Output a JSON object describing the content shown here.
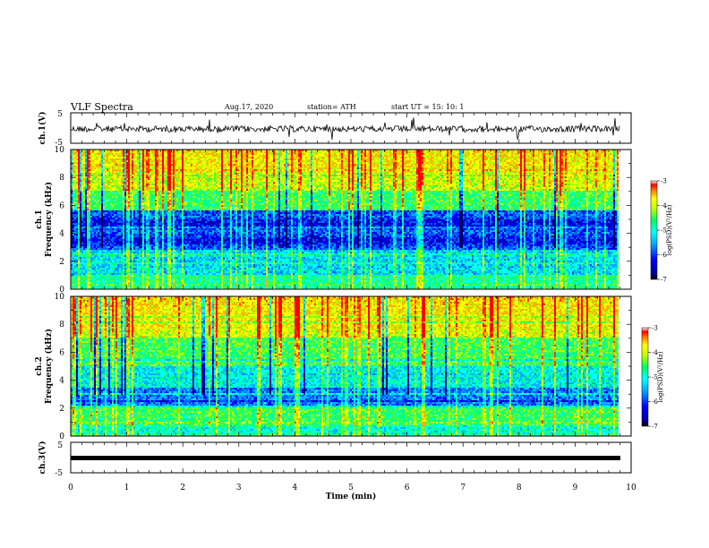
{
  "header": {
    "title": "VLF Spectra",
    "date": "Aug.17, 2020",
    "station": "station= ATH",
    "start": "start  UT  =   15: 10: 1"
  },
  "chart_data": [
    {
      "type": "line",
      "name": "ch1-waveform",
      "ylabel": "ch.1(V)",
      "ylim": [
        -5,
        5
      ],
      "yticks": [
        "5",
        "-5"
      ],
      "xlim": [
        0,
        10
      ],
      "values_description_free": true
    },
    {
      "type": "heatmap",
      "name": "ch1-spectrogram",
      "ylabel": "ch.1\nFrequency (kHz)",
      "ylabel_line1": "ch.1",
      "ylabel_line2": "Frequency (kHz)",
      "ylim": [
        0,
        10
      ],
      "yticks": [
        "0",
        "2",
        "4",
        "6",
        "8",
        "10"
      ],
      "xlim": [
        0,
        9.8
      ],
      "colorbar": {
        "label": "log(PSD)(V²/Hz)",
        "range": [
          -7,
          -3
        ],
        "ticks": [
          "-3",
          "-4",
          "-5",
          "-6",
          "-7"
        ]
      }
    },
    {
      "type": "heatmap",
      "name": "ch2-spectrogram",
      "ylabel_line1": "ch.2",
      "ylabel_line2": "Frequency (kHz)",
      "ylim": [
        0,
        10
      ],
      "yticks": [
        "0",
        "2",
        "4",
        "6",
        "8",
        "10"
      ],
      "xlim": [
        0,
        9.8
      ],
      "colorbar": {
        "label": "log(PSD)(V²/Hz)",
        "range": [
          -7,
          -3
        ],
        "ticks": [
          "-3",
          "-4",
          "-5",
          "-6",
          "-7"
        ]
      }
    },
    {
      "type": "line",
      "name": "ch3-waveform",
      "ylabel": "ch.3(V)",
      "ylim": [
        -5,
        5
      ],
      "yticks": [
        "5",
        "-5"
      ],
      "xlim": [
        0,
        10
      ]
    }
  ],
  "xaxis": {
    "label": "Time  (min)",
    "ticks": [
      "0",
      "1",
      "2",
      "3",
      "4",
      "5",
      "6",
      "7",
      "8",
      "9",
      "10"
    ],
    "range": [
      0,
      10
    ]
  },
  "colors": {
    "frame": "#000000",
    "cmap": [
      "#000080",
      "#0000ff",
      "#0080ff",
      "#00ffff",
      "#00ff80",
      "#80ff00",
      "#ffff00",
      "#ff8000",
      "#ff0000"
    ]
  }
}
